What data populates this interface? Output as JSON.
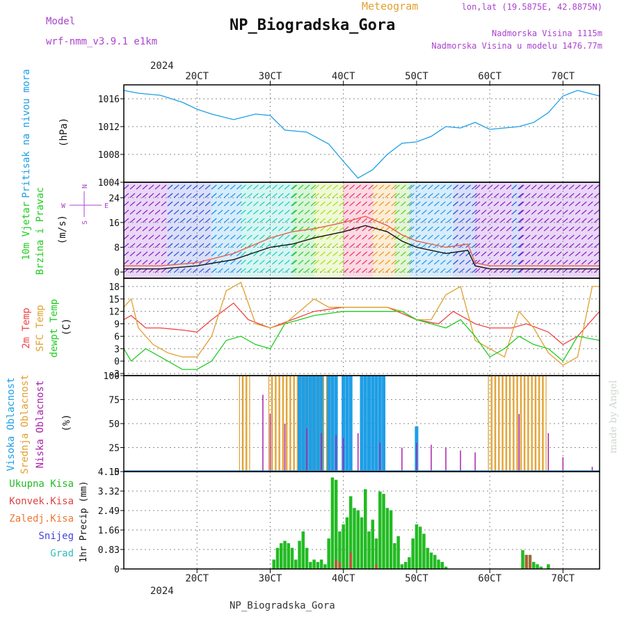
{
  "header": {
    "model_label": "Model",
    "model_name": "wrf-nmm_v3.9.1  e1km",
    "product": "Meteogram",
    "station": "NP_Biogradska_Gora",
    "location": "lon,lat (19.5875E, 42.8875N)",
    "elevation": "Nadmorska Visina 1115m",
    "model_elevation": "Nadmorska Visina u modelu 1476.77m"
  },
  "footer": {
    "station": "NP_Biogradska_Gora",
    "credit": "made by Angel"
  },
  "time_axis": {
    "year": "2024",
    "ticks": [
      {
        "day": 2,
        "label": "20CT"
      },
      {
        "day": 3,
        "label": "30CT"
      },
      {
        "day": 4,
        "label": "40CT"
      },
      {
        "day": 5,
        "label": "50CT"
      },
      {
        "day": 6,
        "label": "60CT"
      },
      {
        "day": 7,
        "label": "70CT"
      }
    ],
    "range": [
      1.0,
      7.5
    ],
    "unit": "days"
  },
  "colors": {
    "pressure": "#1e9ee6",
    "wind_speed": "#e8604a",
    "wind_gust": "#111111",
    "temp2m": "#ee4444",
    "sfc_temp": "#e0a030",
    "dewpoint": "#22cc22",
    "cloud_high": "#1e9ee6",
    "cloud_mid": "#e0a030",
    "cloud_low": "#aa22aa",
    "precip_total": "#22bb22",
    "precip_conv": "#dd4444",
    "precip_frz": "#ee7733",
    "snow": "#4444dd",
    "hail": "#33bbbb",
    "grid": "#888888",
    "purple_text": "#aa44cc"
  },
  "chart_data": [
    {
      "type": "line",
      "panel": "pressure",
      "labels": [
        "Pritisak na nivou mora",
        "(hPa)"
      ],
      "yticks": [
        1004,
        1008,
        1012,
        1016
      ],
      "ylim": [
        1004,
        1018
      ],
      "series": [
        {
          "key": "pressure",
          "x": [
            1.0,
            1.2,
            1.5,
            1.8,
            2.0,
            2.2,
            2.5,
            2.8,
            3.0,
            3.2,
            3.5,
            3.8,
            4.0,
            4.2,
            4.4,
            4.6,
            4.8,
            5.0,
            5.2,
            5.4,
            5.6,
            5.8,
            6.0,
            6.2,
            6.4,
            6.6,
            6.8,
            7.0,
            7.2,
            7.5
          ],
          "y": [
            1017.2,
            1016.8,
            1016.5,
            1015.5,
            1014.5,
            1013.8,
            1013.0,
            1013.8,
            1013.6,
            1011.5,
            1011.2,
            1009.5,
            1007.0,
            1004.6,
            1005.8,
            1008.0,
            1009.6,
            1009.8,
            1010.6,
            1012.0,
            1011.8,
            1012.6,
            1011.6,
            1011.8,
            1012.0,
            1012.6,
            1014.0,
            1016.4,
            1017.2,
            1016.4
          ]
        }
      ]
    },
    {
      "type": "line",
      "panel": "wind",
      "labels": [
        "10m Vjetar",
        "Brzina i Pravac",
        "(m/s)"
      ],
      "compass": [
        "N",
        "E",
        "S",
        "W"
      ],
      "yticks": [
        0,
        8,
        16,
        24
      ],
      "ylim": [
        -2,
        29
      ],
      "series": [
        {
          "key": "wind_speed",
          "x": [
            1.0,
            1.5,
            2.0,
            2.5,
            3.0,
            3.3,
            3.6,
            4.0,
            4.3,
            4.6,
            4.8,
            5.0,
            5.2,
            5.4,
            5.7,
            5.8,
            6.0,
            6.3,
            6.6,
            7.0,
            7.5
          ],
          "y": [
            2,
            2,
            3,
            6,
            11,
            13,
            14,
            16,
            18,
            15,
            12,
            10,
            9,
            8,
            9,
            3,
            2,
            2,
            2,
            2,
            2
          ]
        },
        {
          "key": "wind_gust",
          "x": [
            1.0,
            1.5,
            2.0,
            2.5,
            3.0,
            3.3,
            3.6,
            4.0,
            4.3,
            4.6,
            4.8,
            5.0,
            5.2,
            5.4,
            5.7,
            5.8,
            6.0,
            6.3,
            6.6,
            7.0,
            7.5
          ],
          "y": [
            1,
            1,
            2,
            4,
            8,
            9,
            11,
            13,
            15,
            13,
            10,
            8,
            7,
            6,
            7,
            2,
            1,
            1,
            1,
            1,
            1
          ]
        }
      ],
      "direction_band": [
        {
          "from": 1.0,
          "to": 1.6,
          "color": "#8822cc"
        },
        {
          "from": 1.6,
          "to": 2.2,
          "color": "#3355dd"
        },
        {
          "from": 2.2,
          "to": 2.6,
          "color": "#2299ee"
        },
        {
          "from": 2.6,
          "to": 3.3,
          "color": "#22ccbb"
        },
        {
          "from": 3.3,
          "to": 3.6,
          "color": "#33cc33"
        },
        {
          "from": 3.6,
          "to": 4.0,
          "color": "#aadd22"
        },
        {
          "from": 4.0,
          "to": 4.4,
          "color": "#ee3366"
        },
        {
          "from": 4.4,
          "to": 4.7,
          "color": "#ee9922"
        },
        {
          "from": 4.7,
          "to": 4.9,
          "color": "#66cc22"
        },
        {
          "from": 4.9,
          "to": 5.5,
          "color": "#2299ee"
        },
        {
          "from": 5.5,
          "to": 5.8,
          "color": "#3355dd"
        },
        {
          "from": 5.8,
          "to": 6.3,
          "color": "#8822cc"
        },
        {
          "from": 6.3,
          "to": 6.4,
          "color": "#3355dd"
        },
        {
          "from": 6.4,
          "to": 7.5,
          "color": "#8822cc"
        }
      ]
    },
    {
      "type": "line",
      "panel": "temperature",
      "labels": [
        "2m Temp",
        "SFC Temp",
        "dewpt Temp",
        "(C)"
      ],
      "yticks": [
        -3,
        0,
        3,
        6,
        9,
        12,
        15,
        18
      ],
      "ylim": [
        -3.5,
        20
      ],
      "series": [
        {
          "key": "temp2m",
          "x": [
            1.0,
            1.1,
            1.3,
            1.5,
            1.8,
            2.0,
            2.2,
            2.5,
            2.7,
            3.0,
            3.3,
            3.6,
            4.0,
            4.3,
            4.6,
            5.0,
            5.3,
            5.5,
            5.8,
            6.0,
            6.3,
            6.5,
            6.8,
            7.0,
            7.2,
            7.5
          ],
          "y": [
            10,
            11,
            8,
            8,
            7.5,
            7,
            10,
            14,
            10,
            8,
            10,
            12,
            13,
            13,
            13,
            10,
            9,
            12,
            9,
            8,
            8,
            9,
            7,
            4,
            6,
            12
          ]
        },
        {
          "key": "sfc_temp",
          "x": [
            1.0,
            1.1,
            1.2,
            1.4,
            1.6,
            1.8,
            2.0,
            2.2,
            2.4,
            2.6,
            2.8,
            3.0,
            3.2,
            3.4,
            3.6,
            3.8,
            4.0,
            4.3,
            4.6,
            4.8,
            5.0,
            5.2,
            5.4,
            5.6,
            5.8,
            6.0,
            6.2,
            6.4,
            6.6,
            6.8,
            7.0,
            7.2,
            7.4,
            7.5
          ],
          "y": [
            13,
            15,
            8,
            4,
            2,
            1,
            1,
            6,
            17,
            19,
            9,
            8,
            9,
            12,
            15,
            13,
            13,
            13,
            13,
            12,
            10,
            10,
            16,
            18,
            5,
            3,
            1,
            12,
            8,
            2,
            -1,
            1,
            18,
            18
          ]
        },
        {
          "key": "dewpoint",
          "x": [
            1.0,
            1.1,
            1.3,
            1.6,
            1.8,
            2.0,
            2.2,
            2.4,
            2.6,
            2.8,
            3.0,
            3.2,
            3.4,
            3.6,
            4.0,
            4.4,
            4.8,
            5.0,
            5.2,
            5.4,
            5.6,
            5.8,
            6.0,
            6.2,
            6.4,
            6.6,
            6.8,
            7.0,
            7.2,
            7.5
          ],
          "y": [
            3,
            0,
            3,
            0,
            -2,
            -2,
            0,
            5,
            6,
            4,
            3,
            9,
            10,
            11,
            12,
            12,
            12,
            10,
            9,
            8,
            10,
            6,
            1,
            3,
            6,
            4,
            3,
            0,
            6,
            5
          ]
        }
      ]
    },
    {
      "type": "bar",
      "panel": "clouds",
      "labels": [
        "Visoka Oblacnost",
        "Srednja Oblacnost",
        "Niska Oblacnost",
        "(%)"
      ],
      "yticks": [
        0,
        25,
        50,
        75,
        100
      ],
      "ylim": [
        0,
        100
      ],
      "series": [
        {
          "key": "cloud_mid",
          "x": [
            2.6,
            2.65,
            2.7,
            3.0,
            3.05,
            3.1,
            3.15,
            3.2,
            3.25,
            3.3,
            3.35,
            3.4,
            3.45,
            3.5,
            3.55,
            3.6,
            3.65,
            3.7,
            3.75,
            3.8,
            6.0,
            6.05,
            6.1,
            6.15,
            6.2,
            6.25,
            6.3,
            6.35,
            6.4,
            6.45,
            6.5,
            6.55,
            6.6,
            6.65,
            6.7,
            6.75
          ],
          "y": [
            100,
            100,
            100,
            100,
            100,
            100,
            100,
            100,
            100,
            100,
            100,
            100,
            100,
            100,
            100,
            100,
            100,
            100,
            100,
            100,
            100,
            100,
            100,
            100,
            100,
            100,
            100,
            100,
            100,
            100,
            100,
            100,
            100,
            100,
            100,
            100
          ]
        },
        {
          "key": "cloud_high",
          "x": [
            3.4,
            3.45,
            3.5,
            3.55,
            3.6,
            3.65,
            3.7,
            3.8,
            3.85,
            3.9,
            4.0,
            4.05,
            4.1,
            4.25,
            4.3,
            4.35,
            4.4,
            4.45,
            4.5,
            4.55,
            5.0
          ],
          "y": [
            100,
            100,
            100,
            100,
            100,
            100,
            100,
            100,
            100,
            100,
            100,
            100,
            100,
            100,
            100,
            100,
            100,
            100,
            100,
            100,
            47
          ]
        },
        {
          "key": "cloud_low",
          "x": [
            2.9,
            3.0,
            3.2,
            3.5,
            3.7,
            3.9,
            4.0,
            4.2,
            4.5,
            4.8,
            5.0,
            5.2,
            5.4,
            5.6,
            5.8,
            6.4,
            6.8,
            7.0,
            7.4
          ],
          "y": [
            80,
            60,
            50,
            45,
            40,
            38,
            35,
            40,
            30,
            25,
            30,
            28,
            25,
            22,
            20,
            60,
            40,
            15,
            5
          ]
        }
      ]
    },
    {
      "type": "bar",
      "panel": "precipitation",
      "labels": [
        "Ukupna Kisa",
        "Konvek.Kisa",
        "Zaledj.Kisa",
        "Snijeg",
        "Grad",
        "1hr Precip (mm)"
      ],
      "yticks": [
        0,
        0.83,
        1.66,
        2.49,
        3.32,
        4.15
      ],
      "ylim": [
        0,
        4.15
      ],
      "series": [
        {
          "key": "precip_total",
          "x": [
            3.05,
            3.1,
            3.15,
            3.2,
            3.25,
            3.3,
            3.35,
            3.4,
            3.45,
            3.5,
            3.55,
            3.6,
            3.65,
            3.7,
            3.75,
            3.8,
            3.85,
            3.9,
            3.95,
            4.0,
            4.05,
            4.1,
            4.15,
            4.2,
            4.25,
            4.3,
            4.35,
            4.4,
            4.45,
            4.5,
            4.55,
            4.6,
            4.65,
            4.7,
            4.75,
            4.8,
            4.85,
            4.9,
            4.95,
            5.0,
            5.05,
            5.1,
            5.15,
            5.2,
            5.25,
            5.3,
            5.35,
            5.4,
            6.45,
            6.5,
            6.55,
            6.6,
            6.65,
            6.7,
            6.8
          ],
          "y": [
            0.4,
            0.9,
            1.1,
            1.2,
            1.1,
            0.9,
            0.4,
            1.2,
            1.6,
            0.9,
            0.3,
            0.4,
            0.3,
            0.4,
            0.2,
            1.3,
            3.9,
            3.8,
            1.6,
            1.9,
            2.2,
            3.1,
            2.6,
            2.5,
            2.2,
            3.4,
            1.6,
            2.1,
            1.3,
            3.3,
            3.2,
            2.6,
            2.5,
            1.1,
            1.4,
            0.2,
            0.3,
            0.5,
            1.3,
            1.9,
            1.8,
            1.5,
            0.9,
            0.7,
            0.6,
            0.4,
            0.3,
            0.1,
            0.8,
            0.6,
            0.6,
            0.3,
            0.2,
            0.1,
            0.2
          ]
        },
        {
          "key": "precip_conv",
          "x": [
            3.9,
            3.95,
            4.1,
            4.45,
            6.5,
            6.55
          ],
          "y": [
            0.4,
            0.3,
            0.7,
            0.2,
            0.6,
            0.6
          ]
        }
      ]
    }
  ]
}
